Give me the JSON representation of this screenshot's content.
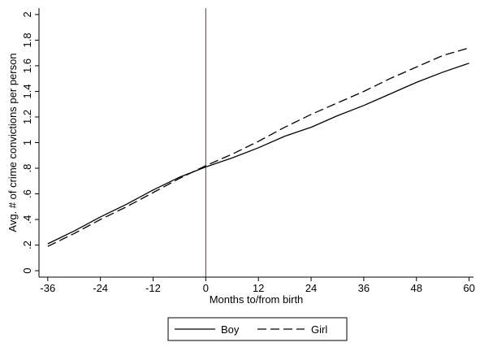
{
  "chart_data": {
    "type": "line",
    "xlabel": "Months to/from birth",
    "ylabel": "Avg. # of crime convictions per person",
    "xlim": [
      -38,
      61
    ],
    "ylim": [
      -0.05,
      2.05
    ],
    "xticks": [
      -36,
      -24,
      -12,
      0,
      12,
      24,
      36,
      48,
      60
    ],
    "xtick_labels": [
      "-36",
      "-24",
      "-12",
      "0",
      "12",
      "24",
      "36",
      "48",
      "60"
    ],
    "yticks": [
      0,
      0.2,
      0.4,
      0.6,
      0.8,
      1,
      1.2,
      1.4,
      1.6,
      1.8,
      2
    ],
    "ytick_labels": [
      "0",
      ".2",
      ".4",
      ".6",
      ".8",
      "1",
      "1.2",
      "1.4",
      "1.6",
      "1.8",
      "2"
    ],
    "vline": {
      "x": 0,
      "color": "#8b1a7a"
    },
    "grid": false,
    "legend": {
      "position": "bottom",
      "frame": true
    },
    "series": [
      {
        "name": "Boy",
        "style": "solid",
        "x": [
          -36,
          -30,
          -24,
          -18,
          -12,
          -6,
          0,
          6,
          12,
          18,
          24,
          30,
          36,
          42,
          48,
          54,
          60
        ],
        "values": [
          0.21,
          0.31,
          0.42,
          0.52,
          0.63,
          0.73,
          0.81,
          0.88,
          0.96,
          1.05,
          1.12,
          1.21,
          1.29,
          1.38,
          1.47,
          1.55,
          1.62
        ]
      },
      {
        "name": "Girl",
        "style": "dashed",
        "x": [
          -36,
          -30,
          -24,
          -18,
          -12,
          -6,
          0,
          6,
          12,
          18,
          24,
          30,
          36,
          42,
          48,
          54,
          60
        ],
        "values": [
          0.19,
          0.29,
          0.4,
          0.5,
          0.61,
          0.72,
          0.82,
          0.91,
          1.01,
          1.12,
          1.22,
          1.31,
          1.4,
          1.5,
          1.59,
          1.68,
          1.74
        ]
      }
    ]
  }
}
